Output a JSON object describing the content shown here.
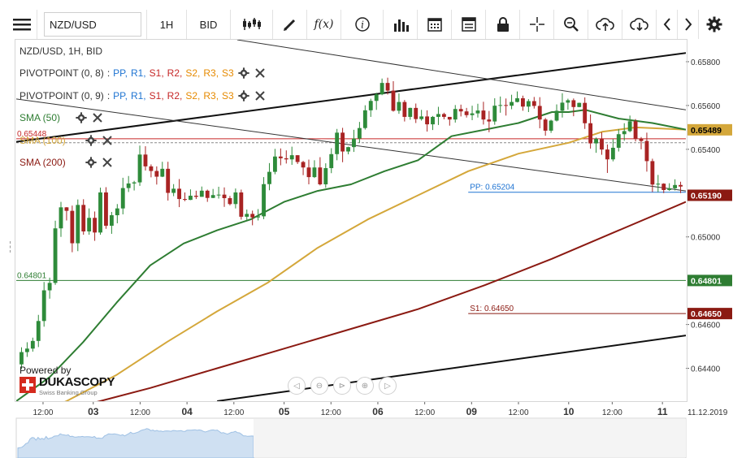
{
  "toolbar": {
    "instrument": "NZD/USD",
    "timeframe": "1H",
    "price_type": "BID",
    "icons": [
      "menu-icon",
      "candles-icon",
      "draw-icon",
      "function-icon",
      "info-icon",
      "bars-icon",
      "calendar-icon",
      "report-icon",
      "lock-icon",
      "crosshair-icon",
      "zoom-icon",
      "upload-icon",
      "download-icon",
      "chevron-left-icon",
      "chevron-right-icon",
      "gear-icon"
    ]
  },
  "legend": {
    "title": "NZD/USD, 1H, BID",
    "pivot1_name": "PIVOTPOINT (0, 8)",
    "pivot2_name": "PIVOTPOINT (0, 9)",
    "pivot_sep": ":",
    "pivot_levels": [
      "PP",
      "R1",
      "S1",
      "R2",
      "S2",
      "R3",
      "S3"
    ],
    "pivot_colors": [
      "#1e73d2",
      "#1e73d2",
      "#c62828",
      "#c62828",
      "#e68a00",
      "#e68a00",
      "#e68a00"
    ],
    "sma50": "SMA (50)",
    "sma100": "SMA (100)",
    "sma200": "SMA (200)",
    "sma50_color": "#2e7d32",
    "sma100_color": "#d4a73a",
    "sma200_color": "#8b1a12"
  },
  "branding": {
    "powered": "Powered by",
    "name": "DUKASCOPY",
    "sub": "Swiss Banking Group"
  },
  "chart_data": {
    "type": "candlestick",
    "y_range": [
      0.6425,
      0.659
    ],
    "y_ticks": [
      {
        "v": 0.658,
        "label": "0.65800"
      },
      {
        "v": 0.656,
        "label": "0.65600"
      },
      {
        "v": 0.654,
        "label": "0.65400"
      },
      {
        "v": 0.65,
        "label": "0.65000"
      },
      {
        "v": 0.646,
        "label": "0.64600"
      },
      {
        "v": 0.644,
        "label": "0.64400"
      }
    ],
    "x_range": [
      0,
      200
    ],
    "x_ticks": [
      {
        "x": 8,
        "label": "12:00",
        "bold": false
      },
      {
        "x": 23,
        "label": "03",
        "bold": true
      },
      {
        "x": 37,
        "label": "12:00",
        "bold": false
      },
      {
        "x": 51,
        "label": "04",
        "bold": true
      },
      {
        "x": 65,
        "label": "12:00",
        "bold": false
      },
      {
        "x": 80,
        "label": "05",
        "bold": true
      },
      {
        "x": 94,
        "label": "12:00",
        "bold": false
      },
      {
        "x": 108,
        "label": "06",
        "bold": true
      },
      {
        "x": 122,
        "label": "12:00",
        "bold": false
      },
      {
        "x": 136,
        "label": "09",
        "bold": true
      },
      {
        "x": 150,
        "label": "12:00",
        "bold": false
      },
      {
        "x": 165,
        "label": "10",
        "bold": true
      },
      {
        "x": 178,
        "label": "12:00",
        "bold": false
      },
      {
        "x": 193,
        "label": "11",
        "bold": true
      }
    ],
    "date_label": "11.12.2019",
    "levels": [
      {
        "name": "pp",
        "label": "PP: 0.65204",
        "value": 0.65204,
        "color": "#1e73d2",
        "start_x": 135
      },
      {
        "name": "s1",
        "label": "S1: 0.64650",
        "value": 0.6465,
        "color": "#8b1a12",
        "start_x": 135
      },
      {
        "name": "green-hline",
        "label": "0.64801",
        "value": 0.64801,
        "color": "#2e7d32",
        "start_x": 0
      },
      {
        "name": "red-hline",
        "label": "0.65448",
        "value": 0.65448,
        "color": "#c62828",
        "start_x": 0
      }
    ],
    "price_tags": [
      {
        "value": 0.65489,
        "label": "0.65489",
        "bg": "#d4a73a",
        "fg": "#000"
      },
      {
        "value": 0.6519,
        "label": "0.65190",
        "bg": "#8b1a12",
        "fg": "#fff"
      },
      {
        "value": 0.64801,
        "label": "0.64801",
        "bg": "#2e7d32",
        "fg": "#fff"
      },
      {
        "value": 0.6465,
        "label": "0.64650",
        "bg": "#8b1a12",
        "fg": "#fff"
      }
    ],
    "trendlines": [
      {
        "name": "upper-channel",
        "color": "#111",
        "width": 2,
        "x1": -2,
        "y1": 0.6543,
        "x2": 200,
        "y2": 0.6584
      },
      {
        "name": "lower-channel",
        "color": "#111",
        "width": 2,
        "x1": 60,
        "y1": 0.6425,
        "x2": 200,
        "y2": 0.6455
      },
      {
        "name": "down-channel-top",
        "color": "#333",
        "width": 1,
        "x1": 66,
        "y1": 0.659,
        "x2": 200,
        "y2": 0.6558
      },
      {
        "name": "down-channel-bottom",
        "color": "#333",
        "width": 1,
        "x1": 0,
        "y1": 0.6563,
        "x2": 200,
        "y2": 0.6521
      }
    ],
    "sma50": [
      [
        0,
        0.6425
      ],
      [
        10,
        0.6436
      ],
      [
        20,
        0.6452
      ],
      [
        30,
        0.647
      ],
      [
        40,
        0.6487
      ],
      [
        50,
        0.6497
      ],
      [
        60,
        0.6503
      ],
      [
        70,
        0.6508
      ],
      [
        80,
        0.6516
      ],
      [
        90,
        0.6521
      ],
      [
        100,
        0.6524
      ],
      [
        110,
        0.653
      ],
      [
        120,
        0.6535
      ],
      [
        130,
        0.6546
      ],
      [
        140,
        0.6549
      ],
      [
        150,
        0.6552
      ],
      [
        160,
        0.6557
      ],
      [
        165,
        0.6557
      ],
      [
        170,
        0.6558
      ],
      [
        180,
        0.6554
      ],
      [
        190,
        0.6552
      ],
      [
        200,
        0.6549
      ]
    ],
    "sma100": [
      [
        0,
        0.6415
      ],
      [
        15,
        0.6425
      ],
      [
        30,
        0.6437
      ],
      [
        45,
        0.6452
      ],
      [
        60,
        0.6466
      ],
      [
        75,
        0.6479
      ],
      [
        90,
        0.6495
      ],
      [
        105,
        0.6508
      ],
      [
        120,
        0.6519
      ],
      [
        135,
        0.653
      ],
      [
        150,
        0.6538
      ],
      [
        165,
        0.6543
      ],
      [
        175,
        0.6548
      ],
      [
        185,
        0.655
      ],
      [
        200,
        0.6549
      ]
    ],
    "sma200": [
      [
        0,
        0.6418
      ],
      [
        20,
        0.6423
      ],
      [
        40,
        0.6431
      ],
      [
        60,
        0.644
      ],
      [
        80,
        0.6449
      ],
      [
        100,
        0.6458
      ],
      [
        120,
        0.6467
      ],
      [
        140,
        0.6478
      ],
      [
        160,
        0.649
      ],
      [
        180,
        0.6503
      ],
      [
        200,
        0.6516
      ]
    ],
    "candles": [
      [
        0.64418,
        0.64474,
        0.64397,
        0.64496
      ],
      [
        0.64474,
        0.6449,
        0.64452,
        0.64519
      ],
      [
        0.6449,
        0.64525,
        0.64476,
        0.6454
      ],
      [
        0.64525,
        0.64616,
        0.64497,
        0.64644
      ],
      [
        0.64616,
        0.64756,
        0.6459,
        0.64794
      ],
      [
        0.64756,
        0.6479,
        0.64718,
        0.64814
      ],
      [
        0.6479,
        0.65039,
        0.64781,
        0.65074
      ],
      [
        0.65039,
        0.65135,
        0.65,
        0.6516
      ],
      [
        0.65135,
        0.65119,
        0.65075,
        0.65136
      ],
      [
        0.65119,
        0.64971,
        0.6493,
        0.65143
      ],
      [
        0.64971,
        0.65146,
        0.64935,
        0.65171
      ],
      [
        0.65146,
        0.65025,
        0.6501,
        0.65172
      ],
      [
        0.65025,
        0.65087,
        0.6501,
        0.6513
      ],
      [
        0.65087,
        0.6502,
        0.64982,
        0.65116
      ],
      [
        0.6502,
        0.65203,
        0.6501,
        0.65225
      ],
      [
        0.65203,
        0.65051,
        0.65037,
        0.65227
      ],
      [
        0.65051,
        0.65099,
        0.65014,
        0.65114
      ],
      [
        0.65099,
        0.6513,
        0.65062,
        0.6515
      ],
      [
        0.6513,
        0.65223,
        0.65103,
        0.6527
      ],
      [
        0.65223,
        0.65244,
        0.65205,
        0.65278
      ],
      [
        0.65244,
        0.65249,
        0.65212,
        0.65256
      ],
      [
        0.65249,
        0.65376,
        0.65233,
        0.65417
      ],
      [
        0.65376,
        0.65322,
        0.65303,
        0.65414
      ],
      [
        0.65322,
        0.65301,
        0.65272,
        0.65331
      ],
      [
        0.65301,
        0.65275,
        0.65239,
        0.65322
      ],
      [
        0.65275,
        0.65311,
        0.65273,
        0.65343
      ],
      [
        0.65311,
        0.65201,
        0.65166,
        0.65343
      ],
      [
        0.65201,
        0.6522,
        0.65186,
        0.65241
      ],
      [
        0.6522,
        0.65173,
        0.65136,
        0.65264
      ],
      [
        0.65173,
        0.65169,
        0.65163,
        0.65203
      ],
      [
        0.65169,
        0.65188,
        0.65168,
        0.65217
      ],
      [
        0.65188,
        0.65183,
        0.65173,
        0.65211
      ],
      [
        0.65183,
        0.65211,
        0.65183,
        0.6523
      ],
      [
        0.65211,
        0.65178,
        0.6516,
        0.65216
      ],
      [
        0.65178,
        0.65191,
        0.65177,
        0.65219
      ],
      [
        0.65191,
        0.65193,
        0.65175,
        0.65229
      ],
      [
        0.65193,
        0.65177,
        0.65137,
        0.65226
      ],
      [
        0.65177,
        0.6515,
        0.65144,
        0.65187
      ],
      [
        0.6515,
        0.65203,
        0.6513,
        0.65221
      ],
      [
        0.65203,
        0.65092,
        0.65079,
        0.65216
      ],
      [
        0.65092,
        0.65105,
        0.65074,
        0.65125
      ],
      [
        0.65105,
        0.65089,
        0.65053,
        0.6512
      ],
      [
        0.65089,
        0.65094,
        0.65075,
        0.65127
      ],
      [
        0.65094,
        0.65241,
        0.65081,
        0.65273
      ],
      [
        0.65241,
        0.65297,
        0.65213,
        0.65337
      ],
      [
        0.65297,
        0.65367,
        0.65286,
        0.65402
      ],
      [
        0.65367,
        0.65359,
        0.65327,
        0.65404
      ],
      [
        0.65359,
        0.65354,
        0.65335,
        0.65395
      ],
      [
        0.65354,
        0.65373,
        0.65329,
        0.65412
      ],
      [
        0.65373,
        0.65342,
        0.65333,
        0.65373
      ],
      [
        0.65342,
        0.65317,
        0.65282,
        0.65347
      ],
      [
        0.65317,
        0.65273,
        0.6524,
        0.65353
      ],
      [
        0.65273,
        0.65317,
        0.65269,
        0.6535
      ],
      [
        0.65317,
        0.6524,
        0.65235,
        0.65364
      ],
      [
        0.6524,
        0.65314,
        0.65224,
        0.65336
      ],
      [
        0.65314,
        0.65378,
        0.65291,
        0.65405
      ],
      [
        0.65378,
        0.65476,
        0.6535,
        0.65493
      ],
      [
        0.65476,
        0.6539,
        0.65341,
        0.65498
      ],
      [
        0.6539,
        0.6541,
        0.65377,
        0.65412
      ],
      [
        0.6541,
        0.65449,
        0.65388,
        0.65489
      ],
      [
        0.65449,
        0.65497,
        0.6543,
        0.65525
      ],
      [
        0.65497,
        0.65578,
        0.6549,
        0.65601
      ],
      [
        0.65578,
        0.65621,
        0.65548,
        0.65631
      ],
      [
        0.65621,
        0.65651,
        0.6558,
        0.65658
      ],
      [
        0.65651,
        0.65703,
        0.65647,
        0.65723
      ],
      [
        0.65703,
        0.65668,
        0.6565,
        0.65727
      ],
      [
        0.65668,
        0.65576,
        0.65572,
        0.65711
      ],
      [
        0.65576,
        0.65616,
        0.65562,
        0.65655
      ],
      [
        0.65616,
        0.65548,
        0.65527,
        0.65625
      ],
      [
        0.65548,
        0.65589,
        0.65535,
        0.6559
      ],
      [
        0.65589,
        0.65538,
        0.6552,
        0.65609
      ],
      [
        0.65538,
        0.6555,
        0.65531,
        0.6558
      ],
      [
        0.6555,
        0.65514,
        0.65481,
        0.65578
      ],
      [
        0.65514,
        0.65548,
        0.65488,
        0.65552
      ],
      [
        0.65548,
        0.65561,
        0.65511,
        0.65594
      ],
      [
        0.65561,
        0.65548,
        0.65537,
        0.65567
      ],
      [
        0.65548,
        0.65536,
        0.65508,
        0.65545
      ],
      [
        0.65536,
        0.65584,
        0.65522,
        0.65602
      ],
      [
        0.65584,
        0.65573,
        0.6555,
        0.65604
      ],
      [
        0.65573,
        0.65556,
        0.65545,
        0.65589
      ],
      [
        0.65556,
        0.65564,
        0.65533,
        0.65599
      ],
      [
        0.65564,
        0.65577,
        0.65545,
        0.65608
      ],
      [
        0.65577,
        0.65536,
        0.65513,
        0.65617
      ],
      [
        0.65536,
        0.65527,
        0.65478,
        0.65575
      ],
      [
        0.65527,
        0.65599,
        0.65512,
        0.65633
      ],
      [
        0.65599,
        0.65602,
        0.65567,
        0.65641
      ],
      [
        0.65602,
        0.65599,
        0.65554,
        0.65632
      ],
      [
        0.65599,
        0.65616,
        0.65583,
        0.65649
      ],
      [
        0.65616,
        0.65633,
        0.65614,
        0.65664
      ],
      [
        0.65633,
        0.65595,
        0.65576,
        0.65645
      ],
      [
        0.65595,
        0.6562,
        0.6557,
        0.65629
      ],
      [
        0.6562,
        0.65598,
        0.65586,
        0.65639
      ],
      [
        0.65598,
        0.65536,
        0.65496,
        0.65638
      ],
      [
        0.65536,
        0.65485,
        0.65462,
        0.65543
      ],
      [
        0.65485,
        0.65531,
        0.65475,
        0.65535
      ],
      [
        0.65531,
        0.65576,
        0.65527,
        0.65605
      ],
      [
        0.65576,
        0.65613,
        0.65545,
        0.65656
      ],
      [
        0.65613,
        0.65624,
        0.65581,
        0.65631
      ],
      [
        0.65624,
        0.65593,
        0.65551,
        0.65632
      ],
      [
        0.65593,
        0.65612,
        0.65592,
        0.65613
      ],
      [
        0.65612,
        0.65519,
        0.65493,
        0.65637
      ],
      [
        0.65519,
        0.65427,
        0.65403,
        0.65559
      ],
      [
        0.65427,
        0.65448,
        0.65384,
        0.65454
      ],
      [
        0.65448,
        0.65399,
        0.65375,
        0.65478
      ],
      [
        0.65399,
        0.65354,
        0.65292,
        0.65422
      ],
      [
        0.65354,
        0.65407,
        0.65345,
        0.65447
      ],
      [
        0.65407,
        0.65469,
        0.6539,
        0.65492
      ],
      [
        0.65469,
        0.65483,
        0.65439,
        0.65519
      ],
      [
        0.65483,
        0.65528,
        0.65478,
        0.65554
      ],
      [
        0.65528,
        0.65448,
        0.65436,
        0.65538
      ],
      [
        0.65448,
        0.65438,
        0.654,
        0.65456
      ],
      [
        0.65438,
        0.65346,
        0.65298,
        0.65476
      ],
      [
        0.65346,
        0.65239,
        0.65205,
        0.65357
      ],
      [
        0.65239,
        0.65243,
        0.65205,
        0.65283
      ],
      [
        0.65243,
        0.65214,
        0.652,
        0.65245
      ],
      [
        0.65214,
        0.65222,
        0.6521,
        0.65245
      ],
      [
        0.65222,
        0.65237,
        0.65212,
        0.65263
      ],
      [
        0.65237,
        0.6523,
        0.652,
        0.65252
      ]
    ]
  }
}
